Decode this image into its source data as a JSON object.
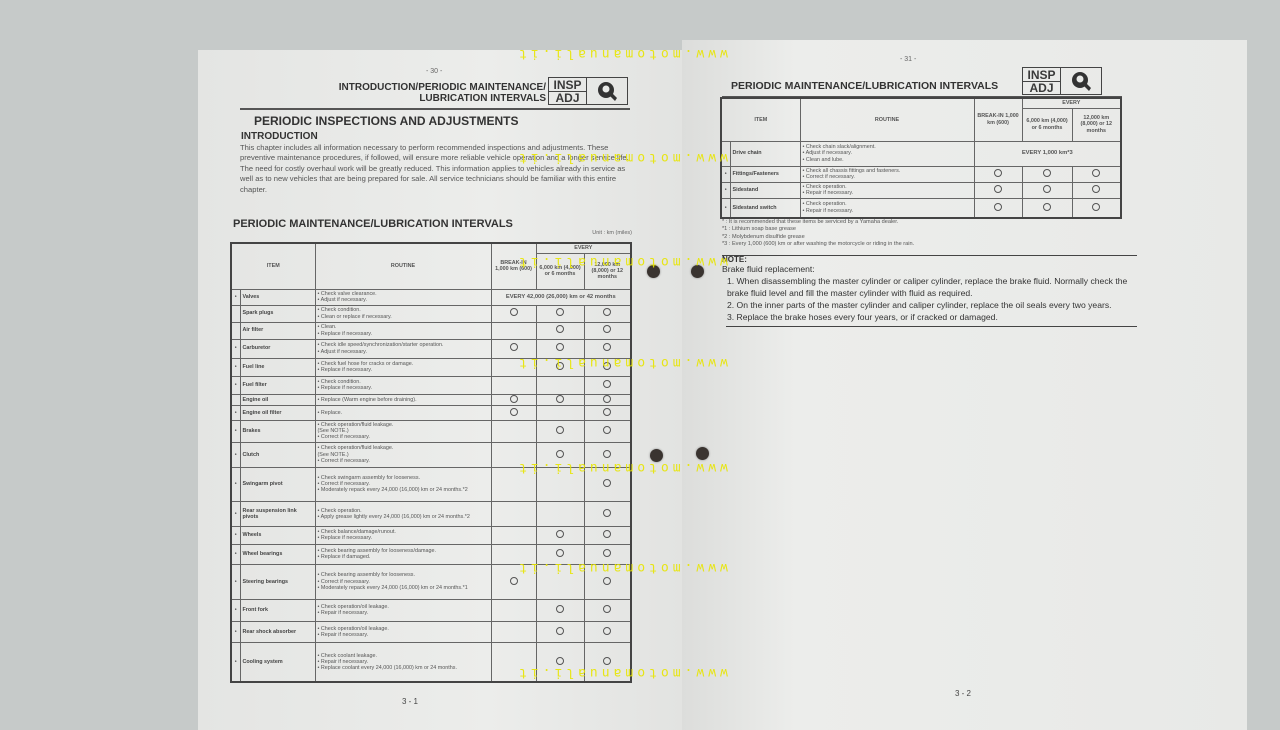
{
  "left_page": {
    "page_marker": "- 30 -",
    "header_line1": "INTRODUCTION/PERIODIC MAINTENANCE/",
    "header_line2": "LUBRICATION INTERVALS",
    "badge_top": "INSP",
    "badge_bottom": "ADJ",
    "badge_icon": "wrench-icon",
    "title": "PERIODIC INSPECTIONS AND ADJUSTMENTS",
    "intro_heading": "INTRODUCTION",
    "intro_text": "This chapter includes all information necessary to perform recommended inspections and adjustments. These preventive maintenance procedures, if followed, will ensure more reliable vehicle operation and a longer service life. The need for costly overhaul work will be greatly reduced. This information applies to vehicles already in service as well as to new vehicles that are being prepared for sale. All service technicians should be familiar with this entire chapter.",
    "section_heading": "PERIODIC MAINTENANCE/LUBRICATION INTERVALS",
    "unit": "Unit : km (miles)",
    "page_number": "3 - 1",
    "table": {
      "headers": {
        "item": "ITEM",
        "routine": "ROUTINE",
        "every": "EVERY",
        "break_in": "BREAK-IN 1,000 km (600)",
        "six": "6,000 km (4,000) or 6 months",
        "twelve": "12,000 km (8,000) or 12 months"
      },
      "rows": [
        {
          "star": "•",
          "item": "Valves",
          "routine": "• Check valve clearance.\n• Adjust if necessary.",
          "span": "EVERY 42,000 (26,000) km or 42 months"
        },
        {
          "star": "",
          "item": "Spark plugs",
          "routine": "• Check condition.\n• Clean or replace if necessary.",
          "marks": [
            true,
            true,
            true
          ]
        },
        {
          "star": "",
          "item": "Air filter",
          "routine": "• Clean.\n• Replace if necessary.",
          "marks": [
            false,
            true,
            true
          ]
        },
        {
          "star": "•",
          "item": "Carburetor",
          "routine": "• Check idle speed/synchronization/starter operation.\n• Adjust if necessary.",
          "marks": [
            true,
            true,
            true
          ]
        },
        {
          "star": "•",
          "item": "Fuel line",
          "routine": "• Check fuel hose for cracks or damage.\n• Replace if necessary.",
          "marks": [
            false,
            true,
            true
          ]
        },
        {
          "star": "•",
          "item": "Fuel filter",
          "routine": "• Check condition.\n• Replace if necessary.",
          "marks": [
            false,
            false,
            true
          ]
        },
        {
          "star": "",
          "item": "Engine oil",
          "routine": "• Replace (Warm engine before draining).",
          "marks": [
            true,
            true,
            true
          ]
        },
        {
          "star": "•",
          "item": "Engine oil filter",
          "routine": "• Replace.",
          "marks": [
            true,
            false,
            true
          ]
        },
        {
          "star": "•",
          "item": "Brakes",
          "routine": "• Check operation/fluid leakage.\n  (See NOTE.)\n• Correct if necessary.",
          "marks": [
            false,
            true,
            true
          ]
        },
        {
          "star": "•",
          "item": "Clutch",
          "routine": "• Check operation/fluid leakage.\n  (See NOTE.)\n• Correct if necessary.",
          "marks": [
            false,
            true,
            true
          ]
        },
        {
          "star": "•",
          "item": "Swingarm pivot",
          "routine": "• Check swingarm assembly for looseness.\n• Correct if necessary.\n• Moderately repack every 24,000 (16,000) km or 24 months.*2",
          "marks": [
            false,
            false,
            true
          ]
        },
        {
          "star": "•",
          "item": "Rear suspension link pivots",
          "routine": "• Check operation.\n• Apply grease lightly every 24,000 (16,000) km or 24 months.*2",
          "marks": [
            false,
            false,
            true
          ]
        },
        {
          "star": "•",
          "item": "Wheels",
          "routine": "• Check balance/damage/runout.\n• Replace if necessary.",
          "marks": [
            false,
            true,
            true
          ]
        },
        {
          "star": "•",
          "item": "Wheel bearings",
          "routine": "• Check bearing assembly for looseness/damage.\n• Replace if damaged.",
          "marks": [
            false,
            true,
            true
          ]
        },
        {
          "star": "•",
          "item": "Steering bearings",
          "routine": "• Check bearing assembly for looseness.\n• Correct if necessary.\n• Moderately repack every 24,000 (16,000) km or 24 months.*1",
          "marks": [
            true,
            false,
            true
          ]
        },
        {
          "star": "•",
          "item": "Front fork",
          "routine": "• Check operation/oil leakage.\n• Repair if necessary.",
          "marks": [
            false,
            true,
            true
          ]
        },
        {
          "star": "•",
          "item": "Rear shock absorber",
          "routine": "• Check operation/oil leakage.\n• Repair if necessary.",
          "marks": [
            false,
            true,
            true
          ]
        },
        {
          "star": "•",
          "item": "Cooling system",
          "routine": "• Check coolant leakage.\n• Repair if necessary.\n• Replace coolant every 24,000 (16,000) km or 24 months.",
          "marks": [
            false,
            true,
            true
          ]
        }
      ]
    }
  },
  "right_page": {
    "page_marker": "- 31 -",
    "header": "PERIODIC MAINTENANCE/LUBRICATION INTERVALS",
    "badge_top": "INSP",
    "badge_bottom": "ADJ",
    "badge_icon": "wrench-icon",
    "page_number": "3 - 2",
    "table": {
      "headers": {
        "item": "ITEM",
        "routine": "ROUTINE",
        "every": "EVERY",
        "break_in": "BREAK-IN 1,000 km (600)",
        "six": "6,000 km (4,000) or 6 months",
        "twelve": "12,000 km (8,000) or 12 months"
      },
      "rows": [
        {
          "star": "",
          "item": "Drive chain",
          "routine": "• Check chain slack/alignment.\n• Adjust if necessary.\n• Clean and lube.",
          "span": "EVERY 1,000 km*3"
        },
        {
          "star": "•",
          "item": "Fittings/Fasteners",
          "routine": "• Check all chassis fittings and fasteners.\n• Correct if necessary.",
          "marks": [
            true,
            true,
            true
          ]
        },
        {
          "star": "•",
          "item": "Sidestand",
          "routine": "• Check operation.\n• Repair if necessary.",
          "marks": [
            true,
            true,
            true
          ]
        },
        {
          "star": "•",
          "item": "Sidestand switch",
          "routine": "• Check operation.\n• Repair if necessary.",
          "marks": [
            true,
            true,
            true
          ]
        }
      ]
    },
    "footnotes": [
      "*  : It is recommended that these items be serviced by a Yamaha dealer.",
      "*1  : Lithium soap base grease",
      "*2  : Molybdenum disulfide grease",
      "*3  : Every 1,000 (600) km or after washing the motorcycle or riding in the rain."
    ],
    "note_label": "NOTE:",
    "note_intro": "Brake fluid replacement:",
    "note_items": [
      "1.  When disassembling the master cylinder or caliper cylinder, replace the brake fluid. Normally check the brake fluid level and fill the master cylinder with fluid as required.",
      "2.  On the inner parts of the master cylinder and caliper cylinder, replace the oil seals every two years.",
      "3.  Replace the brake hoses every four years, or if cracked or damaged."
    ]
  },
  "watermark": "www.motomanuali.it",
  "watermark_color": "#e8e600"
}
